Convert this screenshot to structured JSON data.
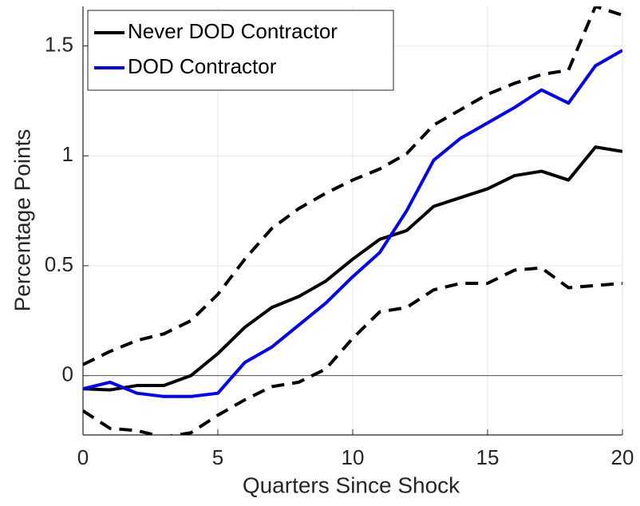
{
  "chart_data": {
    "type": "line",
    "xlabel": "Quarters Since Shock",
    "ylabel": "Percentage Points",
    "x": [
      0,
      1,
      2,
      3,
      4,
      5,
      6,
      7,
      8,
      9,
      10,
      11,
      12,
      13,
      14,
      15,
      16,
      17,
      18,
      19,
      20
    ],
    "series": [
      {
        "name": "Never DOD Contractor",
        "color": "#000000",
        "style": "solid",
        "values": [
          -0.06,
          -0.065,
          -0.045,
          -0.045,
          0.0,
          0.1,
          0.22,
          0.31,
          0.36,
          0.43,
          0.53,
          0.62,
          0.66,
          0.77,
          0.81,
          0.85,
          0.91,
          0.93,
          0.89,
          1.04,
          1.02
        ]
      },
      {
        "name": "DOD Contractor",
        "color": "#0000ff",
        "style": "solid",
        "values": [
          -0.06,
          -0.03,
          -0.08,
          -0.095,
          -0.095,
          -0.08,
          0.06,
          0.13,
          0.23,
          0.33,
          0.45,
          0.56,
          0.75,
          0.98,
          1.08,
          1.15,
          1.22,
          1.3,
          1.24,
          1.41,
          1.48
        ]
      },
      {
        "color": "#000000",
        "style": "dashed",
        "values": [
          0.05,
          0.11,
          0.16,
          0.19,
          0.25,
          0.37,
          0.53,
          0.67,
          0.76,
          0.83,
          0.89,
          0.94,
          1.01,
          1.14,
          1.21,
          1.28,
          1.33,
          1.37,
          1.39,
          1.68,
          1.64
        ]
      },
      {
        "color": "#000000",
        "style": "dashed",
        "values": [
          -0.16,
          -0.24,
          -0.25,
          -0.28,
          -0.26,
          -0.18,
          -0.11,
          -0.05,
          -0.03,
          0.03,
          0.17,
          0.29,
          0.31,
          0.39,
          0.42,
          0.42,
          0.48,
          0.49,
          0.4,
          0.41,
          0.42
        ]
      }
    ],
    "xlim": [
      0,
      20
    ],
    "xticks": [
      0,
      5,
      10,
      15,
      20
    ],
    "ylim": [
      -0.27,
      1.68
    ],
    "yticks": [
      0,
      0.5,
      1,
      1.5
    ],
    "reference_line": 0,
    "grid": true,
    "legend": "northwest"
  }
}
